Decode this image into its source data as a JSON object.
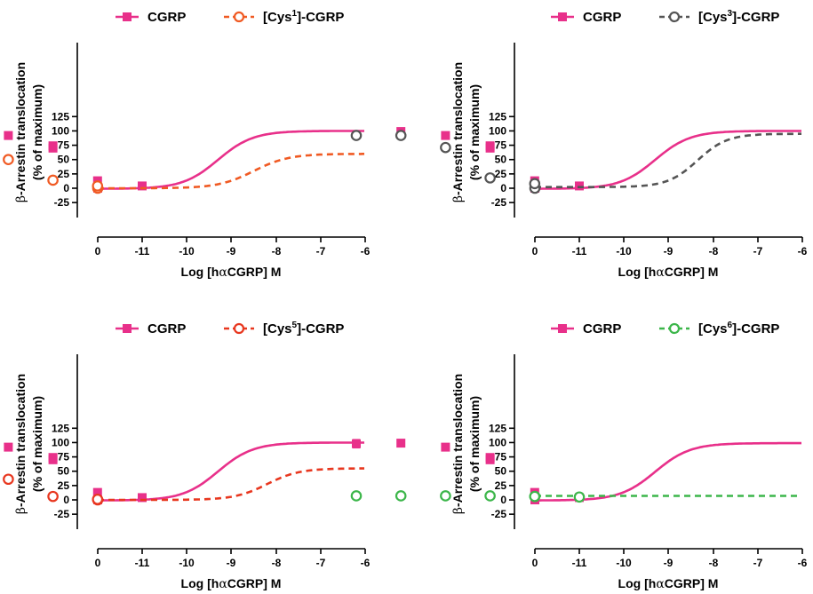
{
  "x_ticks": [
    0,
    -11,
    -10,
    -9,
    -8,
    -7,
    -6
  ],
  "y_ticks": [
    -25,
    0,
    25,
    50,
    75,
    100,
    125
  ],
  "chart_data": [
    {
      "type": "line",
      "xlabel_parts": [
        "Log [h",
        "α",
        "CGRP] M"
      ],
      "ylabel_parts": [
        "β",
        "-Arrestin translocation"
      ],
      "ylabel2": "(% of maximum)",
      "ylim": [
        -25,
        125
      ],
      "x_categories": [
        "0",
        "-11",
        "-10",
        "-9",
        "-8",
        "-7",
        "-6"
      ],
      "legend_placement": "top",
      "series": [
        {
          "name": "CGRP",
          "style": "solid",
          "marker": "filled-square",
          "color": "#e8308a",
          "x": [
            0,
            -11,
            -10,
            -9,
            -9,
            -8,
            -7
          ],
          "y": [
            0,
            4,
            13,
            70,
            74,
            92,
            99
          ],
          "fit": {
            "bottom": -1,
            "top": 100,
            "log_ec50": -9.3,
            "hill": 1.1
          }
        },
        {
          "name_parts": [
            "[Cys",
            "1",
            "]-CGRP"
          ],
          "style": "dashed",
          "marker": "open-circle",
          "color": "#f05a23",
          "x": [
            0,
            -10,
            -9,
            -8,
            -7,
            -6
          ],
          "y": [
            0,
            4,
            14,
            50,
            58,
            59
          ],
          "fit": {
            "bottom": 0,
            "top": 60,
            "log_ec50": -8.5,
            "hill": 1.1
          }
        }
      ]
    },
    {
      "type": "line",
      "xlabel_parts": [
        "Log [h",
        "α",
        "CGRP] M"
      ],
      "ylabel_parts": [
        "β",
        "-Arrestin translocation"
      ],
      "ylabel2": "(% of maximum)",
      "ylim": [
        -25,
        125
      ],
      "x_categories": [
        "0",
        "-11",
        "-10",
        "-9",
        "-8",
        "-7",
        "-6"
      ],
      "legend_placement": "top",
      "series": [
        {
          "name": "CGRP",
          "style": "solid",
          "marker": "filled-square",
          "color": "#e8308a",
          "x": [
            0,
            -11,
            -10,
            -9,
            -9,
            -8,
            -7
          ],
          "y": [
            0,
            4,
            13,
            70,
            74,
            92,
            99
          ],
          "fit": {
            "bottom": -1,
            "top": 100,
            "log_ec50": -9.3,
            "hill": 1.1
          }
        },
        {
          "name_parts": [
            "[Cys",
            "3",
            "]-CGRP"
          ],
          "style": "dashed",
          "marker": "open-circle",
          "color": "#555555",
          "x": [
            0,
            -10,
            -9,
            -8,
            -7,
            -6
          ],
          "y": [
            0,
            8,
            18,
            71,
            92,
            92
          ],
          "fit": {
            "bottom": 2,
            "top": 95,
            "log_ec50": -8.35,
            "hill": 1.3
          }
        }
      ]
    },
    {
      "type": "line",
      "xlabel_parts": [
        "Log [h",
        "α",
        "CGRP] M"
      ],
      "ylabel_parts": [
        "β",
        "-Arrestin translocation"
      ],
      "ylabel2": "(% of maximum)",
      "ylim": [
        -25,
        125
      ],
      "x_categories": [
        "0",
        "-11",
        "-10",
        "-9",
        "-8",
        "-7",
        "-6"
      ],
      "legend_placement": "top",
      "series": [
        {
          "name": "CGRP",
          "style": "solid",
          "marker": "filled-square",
          "color": "#e8308a",
          "x": [
            0,
            -11,
            -10,
            -9,
            -9,
            -8,
            -7
          ],
          "y": [
            0,
            4,
            13,
            70,
            74,
            92,
            99
          ],
          "fit": {
            "bottom": -1,
            "top": 100,
            "log_ec50": -9.3,
            "hill": 1.1
          }
        },
        {
          "name_parts": [
            "[Cys",
            "5",
            "]-CGRP"
          ],
          "style": "dashed",
          "marker": "open-circle",
          "color": "#e8371f",
          "x": [
            0,
            -10,
            -9,
            -8,
            -7,
            -6
          ],
          "y": [
            0,
            1,
            6,
            36,
            51,
            54
          ],
          "fit": {
            "bottom": 0,
            "top": 55,
            "log_ec50": -8.2,
            "hill": 1.2
          }
        }
      ]
    },
    {
      "type": "line",
      "xlabel_parts": [
        "Log [h",
        "α",
        "CGRP] M"
      ],
      "ylabel_parts": [
        "β",
        "-Arrestin translocation"
      ],
      "ylabel2": "(% of maximum)",
      "ylim": [
        -25,
        125
      ],
      "x_categories": [
        "0",
        "-11",
        "-10",
        "-9",
        "-8",
        "-7",
        "-6"
      ],
      "legend_placement": "top",
      "series": [
        {
          "name": "CGRP",
          "style": "solid",
          "marker": "filled-square",
          "color": "#e8308a",
          "x": [
            0,
            -11,
            -10,
            -9,
            -9,
            -8,
            -7,
            -6
          ],
          "y": [
            0,
            4,
            13,
            70,
            74,
            92,
            99,
            98
          ],
          "err": [
            0,
            0,
            0,
            0,
            0,
            0,
            0,
            7
          ],
          "fit": {
            "bottom": -1,
            "top": 99,
            "log_ec50": -9.3,
            "hill": 1.1
          }
        },
        {
          "name_parts": [
            "[Cys",
            "6",
            "]-CGRP"
          ],
          "style": "dashed",
          "marker": "open-circle",
          "color": "#3cb64a",
          "x": [
            0,
            -11,
            -10,
            -9,
            -8,
            -7,
            -6
          ],
          "y": [
            6,
            5,
            6,
            7,
            7,
            7,
            7
          ],
          "fit": {
            "flat": 7
          }
        }
      ]
    }
  ]
}
